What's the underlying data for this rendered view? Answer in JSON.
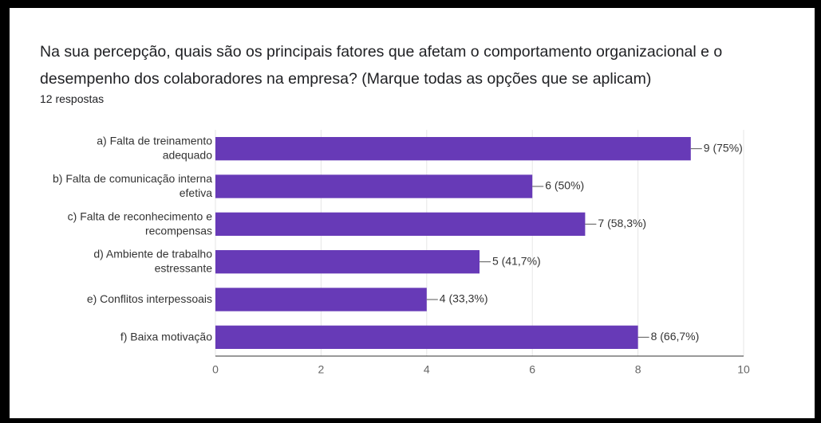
{
  "chart_data": {
    "type": "bar",
    "orientation": "horizontal",
    "title": "Na sua percepção, quais são os principais fatores que afetam o comportamento organizacional e o desempenho dos colaboradores na empresa? (Marque todas as opções que se aplicam)",
    "subtitle": "12 respostas",
    "categories": [
      "a) Falta de treinamento adequado",
      "b) Falta de comunicação interna efetiva",
      "c) Falta de reconhecimento e recompensas",
      "d) Ambiente de trabalho estressante",
      "e) Conflitos interpessoais",
      "f) Baixa motivação"
    ],
    "values": [
      9,
      6,
      7,
      5,
      4,
      8
    ],
    "value_labels": [
      "9 (75%)",
      "6 (50%)",
      "7 (58,3%)",
      "5 (41,7%)",
      "4 (33,3%)",
      "8 (66,7%)"
    ],
    "color": "#673ab7",
    "xlim": [
      0,
      10
    ],
    "xticks": [
      0,
      2,
      4,
      6,
      8,
      10
    ],
    "grid": true
  }
}
